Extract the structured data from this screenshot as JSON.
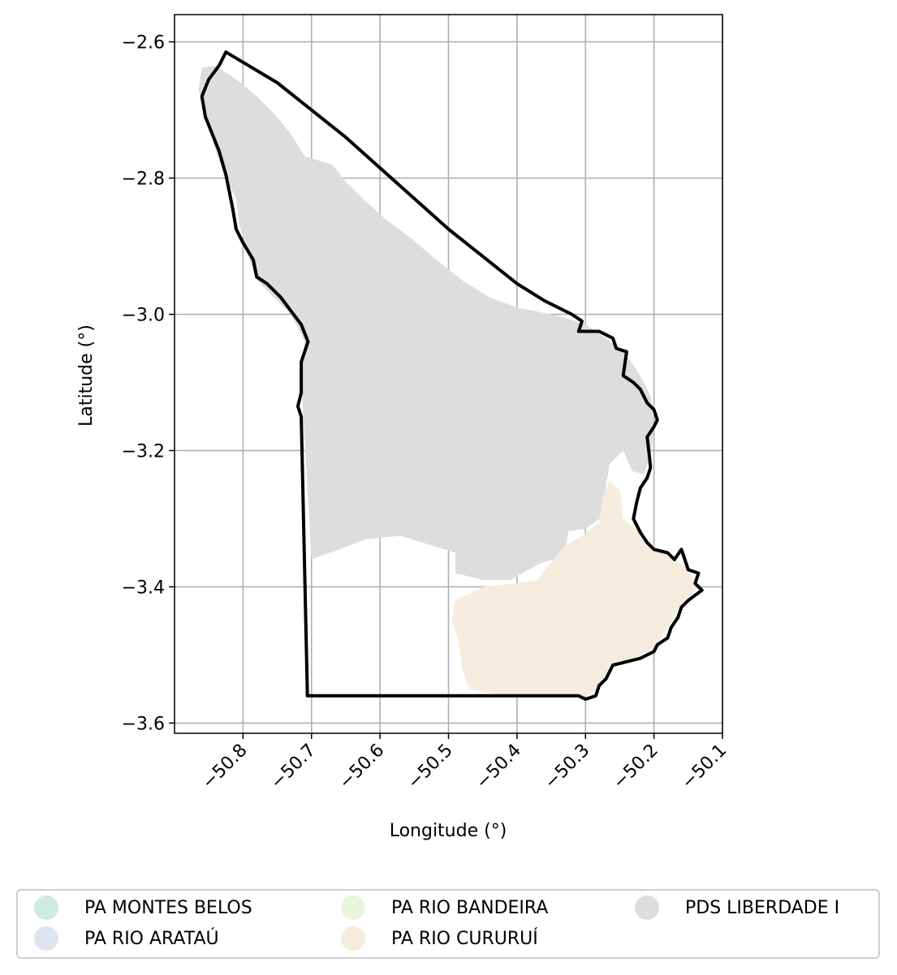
{
  "map": {
    "xlabel": "Longitude (°)",
    "ylabel": "Latitude (°)",
    "xlim": [
      -50.9,
      -50.1
    ],
    "ylim": [
      -3.615,
      -2.56
    ],
    "x_ticks": [
      -50.8,
      -50.7,
      -50.6,
      -50.5,
      -50.4,
      -50.3,
      -50.2,
      -50.1
    ],
    "y_ticks": [
      -2.6,
      -2.8,
      -3.0,
      -3.2,
      -3.4,
      -3.6
    ],
    "x_tick_labels": [
      "−50.8",
      "−50.7",
      "−50.6",
      "−50.5",
      "−50.4",
      "−50.3",
      "−50.2",
      "−50.1"
    ],
    "y_tick_labels": [
      "−2.6",
      "−2.8",
      "−3.0",
      "−3.2",
      "−3.4",
      "−3.6"
    ],
    "grid": true,
    "boundary_color": "#000000",
    "regions": [
      {
        "name": "PDS LIBERDADE I",
        "color": "#dddddd",
        "polygon": [
          [
            -50.86,
            -2.638
          ],
          [
            -50.84,
            -2.635
          ],
          [
            -50.81,
            -2.655
          ],
          [
            -50.78,
            -2.68
          ],
          [
            -50.755,
            -2.705
          ],
          [
            -50.73,
            -2.735
          ],
          [
            -50.71,
            -2.768
          ],
          [
            -50.67,
            -2.78
          ],
          [
            -50.65,
            -2.805
          ],
          [
            -50.62,
            -2.835
          ],
          [
            -50.59,
            -2.862
          ],
          [
            -50.555,
            -2.888
          ],
          [
            -50.52,
            -2.918
          ],
          [
            -50.48,
            -2.95
          ],
          [
            -50.44,
            -2.975
          ],
          [
            -50.4,
            -2.99
          ],
          [
            -50.36,
            -2.998
          ],
          [
            -50.33,
            -3.005
          ],
          [
            -50.3,
            -3.015
          ],
          [
            -50.27,
            -3.035
          ],
          [
            -50.24,
            -3.06
          ],
          [
            -50.22,
            -3.09
          ],
          [
            -50.205,
            -3.12
          ],
          [
            -50.2,
            -3.165
          ],
          [
            -50.205,
            -3.21
          ],
          [
            -50.215,
            -3.235
          ],
          [
            -50.232,
            -3.23
          ],
          [
            -50.245,
            -3.2
          ],
          [
            -50.265,
            -3.22
          ],
          [
            -50.272,
            -3.265
          ],
          [
            -50.272,
            -3.295
          ],
          [
            -50.3,
            -3.315
          ],
          [
            -50.325,
            -3.318
          ],
          [
            -50.33,
            -3.355
          ],
          [
            -50.365,
            -3.365
          ],
          [
            -50.41,
            -3.39
          ],
          [
            -50.45,
            -3.39
          ],
          [
            -50.49,
            -3.38
          ],
          [
            -50.49,
            -3.35
          ],
          [
            -50.57,
            -3.325
          ],
          [
            -50.62,
            -3.33
          ],
          [
            -50.7,
            -3.36
          ],
          [
            -50.712,
            -3.15
          ],
          [
            -50.715,
            -3.08
          ],
          [
            -50.71,
            -3.04
          ],
          [
            -50.73,
            -3.0
          ],
          [
            -50.76,
            -2.97
          ],
          [
            -50.78,
            -2.95
          ],
          [
            -50.79,
            -2.92
          ],
          [
            -50.805,
            -2.87
          ],
          [
            -50.81,
            -2.83
          ],
          [
            -50.825,
            -2.8
          ],
          [
            -50.84,
            -2.76
          ],
          [
            -50.855,
            -2.71
          ],
          [
            -50.865,
            -2.67
          ]
        ]
      },
      {
        "name": "PA RIO CURURUÍ",
        "color": "#f5ecdd",
        "polygon": [
          [
            -50.49,
            -3.42
          ],
          [
            -50.45,
            -3.4
          ],
          [
            -50.4,
            -3.395
          ],
          [
            -50.37,
            -3.39
          ],
          [
            -50.355,
            -3.37
          ],
          [
            -50.33,
            -3.34
          ],
          [
            -50.3,
            -3.322
          ],
          [
            -50.28,
            -3.305
          ],
          [
            -50.275,
            -3.27
          ],
          [
            -50.265,
            -3.245
          ],
          [
            -50.25,
            -3.258
          ],
          [
            -50.245,
            -3.3
          ],
          [
            -50.22,
            -3.32
          ],
          [
            -50.2,
            -3.34
          ],
          [
            -50.17,
            -3.36
          ],
          [
            -50.15,
            -3.375
          ],
          [
            -50.135,
            -3.4
          ],
          [
            -50.16,
            -3.425
          ],
          [
            -50.18,
            -3.46
          ],
          [
            -50.2,
            -3.49
          ],
          [
            -50.24,
            -3.51
          ],
          [
            -50.265,
            -3.52
          ],
          [
            -50.28,
            -3.55
          ],
          [
            -50.3,
            -3.56
          ],
          [
            -50.42,
            -3.56
          ],
          [
            -50.47,
            -3.55
          ],
          [
            -50.48,
            -3.52
          ],
          [
            -50.485,
            -3.48
          ],
          [
            -50.495,
            -3.45
          ]
        ]
      }
    ],
    "boundary": [
      [
        -50.85,
        -2.655
      ],
      [
        -50.835,
        -2.635
      ],
      [
        -50.825,
        -2.615
      ],
      [
        -50.8,
        -2.63
      ],
      [
        -50.75,
        -2.66
      ],
      [
        -50.7,
        -2.7
      ],
      [
        -50.65,
        -2.74
      ],
      [
        -50.6,
        -2.785
      ],
      [
        -50.55,
        -2.83
      ],
      [
        -50.5,
        -2.875
      ],
      [
        -50.45,
        -2.915
      ],
      [
        -50.4,
        -2.955
      ],
      [
        -50.36,
        -2.98
      ],
      [
        -50.32,
        -3.0
      ],
      [
        -50.305,
        -3.01
      ],
      [
        -50.31,
        -3.025
      ],
      [
        -50.28,
        -3.025
      ],
      [
        -50.26,
        -3.035
      ],
      [
        -50.255,
        -3.05
      ],
      [
        -50.24,
        -3.055
      ],
      [
        -50.245,
        -3.09
      ],
      [
        -50.23,
        -3.1
      ],
      [
        -50.22,
        -3.11
      ],
      [
        -50.21,
        -3.13
      ],
      [
        -50.2,
        -3.14
      ],
      [
        -50.195,
        -3.155
      ],
      [
        -50.2,
        -3.165
      ],
      [
        -50.21,
        -3.18
      ],
      [
        -50.207,
        -3.205
      ],
      [
        -50.205,
        -3.225
      ],
      [
        -50.21,
        -3.24
      ],
      [
        -50.22,
        -3.255
      ],
      [
        -50.225,
        -3.275
      ],
      [
        -50.23,
        -3.3
      ],
      [
        -50.22,
        -3.32
      ],
      [
        -50.21,
        -3.335
      ],
      [
        -50.2,
        -3.345
      ],
      [
        -50.18,
        -3.35
      ],
      [
        -50.17,
        -3.36
      ],
      [
        -50.16,
        -3.345
      ],
      [
        -50.155,
        -3.36
      ],
      [
        -50.15,
        -3.375
      ],
      [
        -50.135,
        -3.38
      ],
      [
        -50.14,
        -3.395
      ],
      [
        -50.13,
        -3.405
      ],
      [
        -50.15,
        -3.42
      ],
      [
        -50.16,
        -3.43
      ],
      [
        -50.165,
        -3.445
      ],
      [
        -50.175,
        -3.46
      ],
      [
        -50.18,
        -3.475
      ],
      [
        -50.195,
        -3.485
      ],
      [
        -50.2,
        -3.495
      ],
      [
        -50.22,
        -3.505
      ],
      [
        -50.24,
        -3.51
      ],
      [
        -50.26,
        -3.515
      ],
      [
        -50.27,
        -3.535
      ],
      [
        -50.28,
        -3.545
      ],
      [
        -50.285,
        -3.56
      ],
      [
        -50.3,
        -3.565
      ],
      [
        -50.31,
        -3.56
      ],
      [
        -50.706,
        -3.56
      ],
      [
        -50.715,
        -3.15
      ],
      [
        -50.72,
        -3.135
      ],
      [
        -50.715,
        -3.115
      ],
      [
        -50.715,
        -3.07
      ],
      [
        -50.705,
        -3.04
      ],
      [
        -50.715,
        -3.015
      ],
      [
        -50.73,
        -2.995
      ],
      [
        -50.745,
        -2.975
      ],
      [
        -50.765,
        -2.955
      ],
      [
        -50.78,
        -2.945
      ],
      [
        -50.785,
        -2.92
      ],
      [
        -50.8,
        -2.895
      ],
      [
        -50.81,
        -2.875
      ],
      [
        -50.815,
        -2.845
      ],
      [
        -50.82,
        -2.82
      ],
      [
        -50.825,
        -2.795
      ],
      [
        -50.835,
        -2.76
      ],
      [
        -50.845,
        -2.735
      ],
      [
        -50.855,
        -2.71
      ],
      [
        -50.86,
        -2.68
      ]
    ]
  },
  "legend": {
    "entries": [
      {
        "label": "PA MONTES BELOS",
        "color": "#cdebdf"
      },
      {
        "label": "PA RIO ARATAÚ",
        "color": "#dde4f0"
      },
      {
        "label": "PA RIO BANDEIRA",
        "color": "#eaf6dc"
      },
      {
        "label": "PA RIO CURURUÍ",
        "color": "#f5ecdd"
      },
      {
        "label": "PDS LIBERDADE I",
        "color": "#dddddd"
      }
    ]
  }
}
